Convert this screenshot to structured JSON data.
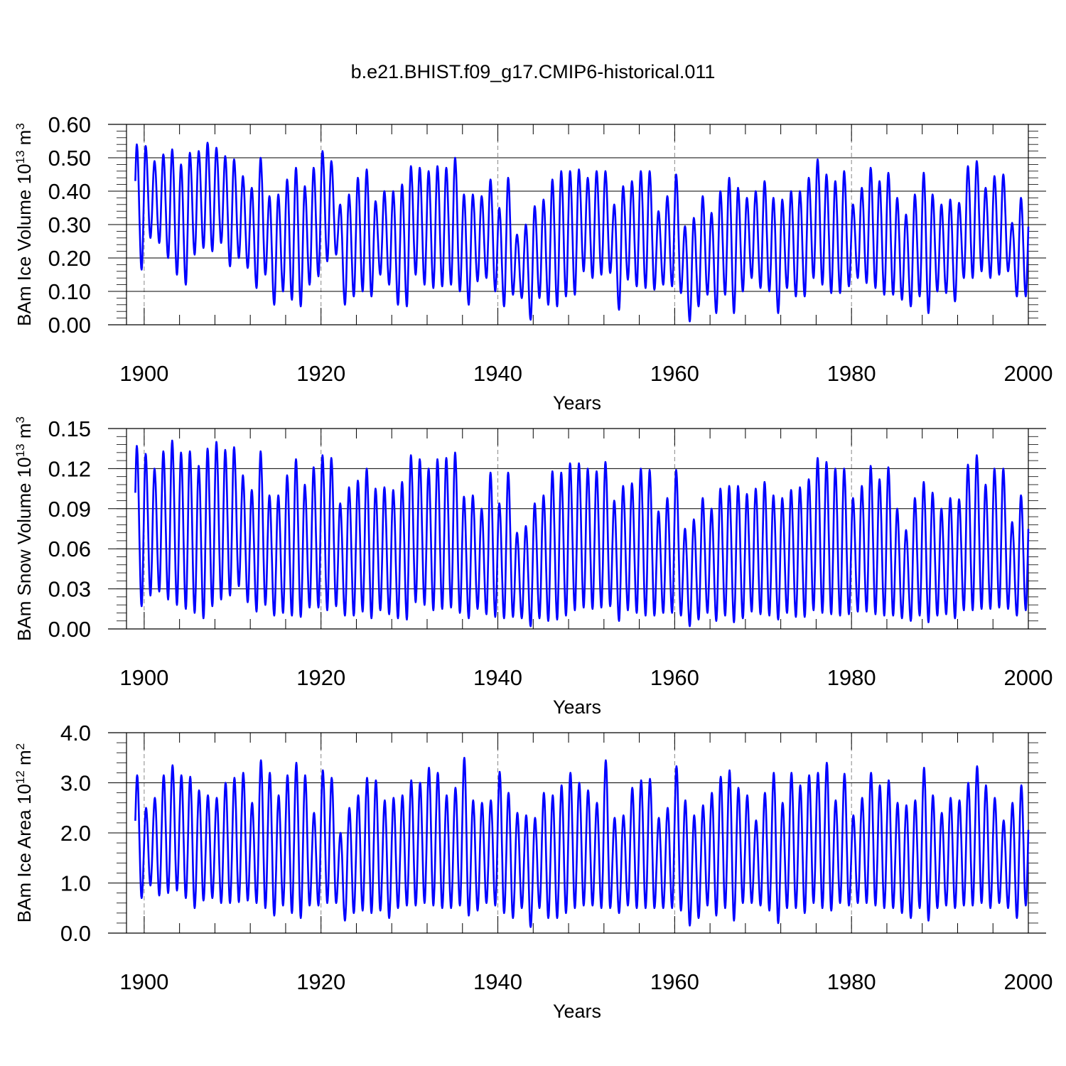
{
  "title": "b.e21.BHIST.f09_g17.CMIP6-historical.011",
  "colors": {
    "series": "#0000ff",
    "axes": "#000000",
    "refline": "#888888"
  },
  "chart_data": [
    {
      "type": "line",
      "ylabel": {
        "base": "BAm Ice Volume 10",
        "sup1": "13",
        "unit": " m",
        "sup2": "3"
      },
      "xlabel": "Years",
      "xlim": [
        1898,
        2000
      ],
      "ylim": [
        0.0,
        0.6
      ],
      "xticks": [
        "1900",
        "1920",
        "1940",
        "1960",
        "1980",
        "2000"
      ],
      "yticks": [
        "0.00",
        "0.10",
        "0.20",
        "0.30",
        "0.40",
        "0.50",
        "0.60"
      ],
      "grid": "dashed vertical lines at 1900, 1920, 1940, 1960, 1980",
      "seasonal_cycle": {
        "peak_month": 2,
        "trough_month": 8.5
      },
      "series": [
        {
          "frequency": "monthly (annual maxima and minima listed)",
          "x": [
            1899,
            1900,
            1901,
            1902,
            1903,
            1904,
            1905,
            1906,
            1907,
            1908,
            1909,
            1910,
            1911,
            1912,
            1913,
            1914,
            1915,
            1916,
            1917,
            1918,
            1919,
            1920,
            1921,
            1922,
            1923,
            1924,
            1925,
            1926,
            1927,
            1928,
            1929,
            1930,
            1931,
            1932,
            1933,
            1934,
            1935,
            1936,
            1937,
            1938,
            1939,
            1940,
            1941,
            1942,
            1943,
            1944,
            1945,
            1946,
            1947,
            1948,
            1949,
            1950,
            1951,
            1952,
            1953,
            1954,
            1955,
            1956,
            1957,
            1958,
            1959,
            1960,
            1961,
            1962,
            1963,
            1964,
            1965,
            1966,
            1967,
            1968,
            1969,
            1970,
            1971,
            1972,
            1973,
            1974,
            1975,
            1976,
            1977,
            1978,
            1979,
            1980,
            1981,
            1982,
            1983,
            1984,
            1985,
            1986,
            1987,
            1988,
            1989,
            1990,
            1991,
            1992,
            1993,
            1994,
            1995,
            1996,
            1997,
            1998,
            1999
          ],
          "annual_max": [
            0.54,
            0.535,
            0.49,
            0.51,
            0.525,
            0.48,
            0.515,
            0.52,
            0.545,
            0.53,
            0.505,
            0.495,
            0.445,
            0.41,
            0.5,
            0.385,
            0.39,
            0.435,
            0.47,
            0.415,
            0.47,
            0.52,
            0.49,
            0.36,
            0.39,
            0.44,
            0.465,
            0.37,
            0.4,
            0.4,
            0.42,
            0.475,
            0.47,
            0.46,
            0.475,
            0.47,
            0.5,
            0.39,
            0.39,
            0.385,
            0.435,
            0.35,
            0.44,
            0.27,
            0.3,
            0.355,
            0.375,
            0.435,
            0.46,
            0.46,
            0.465,
            0.44,
            0.46,
            0.46,
            0.36,
            0.415,
            0.43,
            0.46,
            0.46,
            0.34,
            0.385,
            0.45,
            0.295,
            0.32,
            0.385,
            0.335,
            0.4,
            0.44,
            0.41,
            0.38,
            0.4,
            0.43,
            0.38,
            0.375,
            0.4,
            0.4,
            0.44,
            0.495,
            0.45,
            0.43,
            0.46,
            0.36,
            0.41,
            0.47,
            0.43,
            0.455,
            0.38,
            0.33,
            0.39,
            0.455,
            0.39,
            0.36,
            0.375,
            0.365,
            0.475,
            0.49,
            0.41,
            0.445,
            0.45,
            0.305,
            0.38
          ],
          "annual_min": [
            0.165,
            0.26,
            0.245,
            0.2,
            0.15,
            0.12,
            0.21,
            0.23,
            0.22,
            0.245,
            0.175,
            0.2,
            0.17,
            0.11,
            0.15,
            0.06,
            0.1,
            0.075,
            0.055,
            0.12,
            0.145,
            0.19,
            0.21,
            0.06,
            0.085,
            0.1,
            0.085,
            0.15,
            0.12,
            0.06,
            0.055,
            0.15,
            0.12,
            0.11,
            0.115,
            0.12,
            0.1,
            0.06,
            0.13,
            0.14,
            0.1,
            0.055,
            0.09,
            0.08,
            0.015,
            0.08,
            0.06,
            0.055,
            0.085,
            0.09,
            0.16,
            0.14,
            0.15,
            0.155,
            0.045,
            0.135,
            0.115,
            0.11,
            0.105,
            0.12,
            0.115,
            0.095,
            0.01,
            0.055,
            0.09,
            0.035,
            0.09,
            0.035,
            0.1,
            0.14,
            0.11,
            0.1,
            0.035,
            0.11,
            0.085,
            0.085,
            0.14,
            0.12,
            0.095,
            0.095,
            0.115,
            0.14,
            0.125,
            0.11,
            0.09,
            0.09,
            0.075,
            0.055,
            0.085,
            0.035,
            0.1,
            0.095,
            0.07,
            0.14,
            0.14,
            0.16,
            0.14,
            0.15,
            0.16,
            0.085,
            0.085
          ]
        }
      ]
    },
    {
      "type": "line",
      "ylabel": {
        "base": "BAm Snow Volume 10",
        "sup1": "13",
        "unit": " m",
        "sup2": "3"
      },
      "xlabel": "Years",
      "xlim": [
        1898,
        2000
      ],
      "ylim": [
        0.0,
        0.15
      ],
      "xticks": [
        "1900",
        "1920",
        "1940",
        "1960",
        "1980",
        "2000"
      ],
      "yticks": [
        "0.00",
        "0.03",
        "0.06",
        "0.09",
        "0.12",
        "0.15"
      ],
      "grid": "dashed vertical lines at 1900, 1920, 1940, 1960, 1980",
      "seasonal_cycle": {
        "peak_month": 2,
        "trough_month": 8.5
      },
      "series": [
        {
          "frequency": "monthly (annual maxima and minima listed)",
          "x": [
            1899,
            1900,
            1901,
            1902,
            1903,
            1904,
            1905,
            1906,
            1907,
            1908,
            1909,
            1910,
            1911,
            1912,
            1913,
            1914,
            1915,
            1916,
            1917,
            1918,
            1919,
            1920,
            1921,
            1922,
            1923,
            1924,
            1925,
            1926,
            1927,
            1928,
            1929,
            1930,
            1931,
            1932,
            1933,
            1934,
            1935,
            1936,
            1937,
            1938,
            1939,
            1940,
            1941,
            1942,
            1943,
            1944,
            1945,
            1946,
            1947,
            1948,
            1949,
            1950,
            1951,
            1952,
            1953,
            1954,
            1955,
            1956,
            1957,
            1958,
            1959,
            1960,
            1961,
            1962,
            1963,
            1964,
            1965,
            1966,
            1967,
            1968,
            1969,
            1970,
            1971,
            1972,
            1973,
            1974,
            1975,
            1976,
            1977,
            1978,
            1979,
            1980,
            1981,
            1982,
            1983,
            1984,
            1985,
            1986,
            1987,
            1988,
            1989,
            1990,
            1991,
            1992,
            1993,
            1994,
            1995,
            1996,
            1997,
            1998,
            1999
          ],
          "annual_max": [
            0.137,
            0.131,
            0.12,
            0.133,
            0.141,
            0.132,
            0.133,
            0.122,
            0.135,
            0.14,
            0.134,
            0.136,
            0.115,
            0.104,
            0.133,
            0.1,
            0.1,
            0.115,
            0.127,
            0.108,
            0.121,
            0.13,
            0.128,
            0.094,
            0.106,
            0.111,
            0.12,
            0.105,
            0.106,
            0.104,
            0.11,
            0.13,
            0.127,
            0.12,
            0.127,
            0.128,
            0.132,
            0.099,
            0.1,
            0.09,
            0.117,
            0.094,
            0.117,
            0.072,
            0.077,
            0.094,
            0.1,
            0.118,
            0.117,
            0.124,
            0.124,
            0.12,
            0.118,
            0.125,
            0.096,
            0.107,
            0.109,
            0.12,
            0.119,
            0.088,
            0.098,
            0.119,
            0.075,
            0.082,
            0.098,
            0.09,
            0.105,
            0.107,
            0.107,
            0.101,
            0.105,
            0.11,
            0.1,
            0.098,
            0.104,
            0.106,
            0.112,
            0.128,
            0.125,
            0.12,
            0.12,
            0.098,
            0.107,
            0.122,
            0.112,
            0.121,
            0.09,
            0.074,
            0.098,
            0.11,
            0.102,
            0.09,
            0.098,
            0.097,
            0.123,
            0.13,
            0.108,
            0.12,
            0.12,
            0.08,
            0.1
          ],
          "annual_min": [
            0.017,
            0.025,
            0.028,
            0.022,
            0.018,
            0.015,
            0.012,
            0.008,
            0.017,
            0.022,
            0.025,
            0.032,
            0.02,
            0.013,
            0.018,
            0.01,
            0.012,
            0.01,
            0.009,
            0.016,
            0.016,
            0.014,
            0.017,
            0.01,
            0.01,
            0.013,
            0.008,
            0.014,
            0.011,
            0.008,
            0.007,
            0.02,
            0.018,
            0.014,
            0.015,
            0.016,
            0.012,
            0.008,
            0.015,
            0.011,
            0.009,
            0.008,
            0.009,
            0.008,
            0.002,
            0.008,
            0.006,
            0.007,
            0.01,
            0.014,
            0.016,
            0.015,
            0.016,
            0.017,
            0.006,
            0.014,
            0.012,
            0.01,
            0.01,
            0.012,
            0.012,
            0.01,
            0.002,
            0.007,
            0.012,
            0.006,
            0.01,
            0.005,
            0.008,
            0.013,
            0.011,
            0.01,
            0.007,
            0.012,
            0.009,
            0.009,
            0.014,
            0.012,
            0.011,
            0.01,
            0.011,
            0.013,
            0.013,
            0.011,
            0.01,
            0.01,
            0.008,
            0.006,
            0.01,
            0.005,
            0.01,
            0.011,
            0.008,
            0.014,
            0.014,
            0.015,
            0.015,
            0.016,
            0.015,
            0.01,
            0.014
          ]
        }
      ]
    },
    {
      "type": "line",
      "ylabel": {
        "base": "BAm Ice Area 10",
        "sup1": "12",
        "unit": " m",
        "sup2": "2"
      },
      "xlabel": "Years",
      "xlim": [
        1898,
        2000
      ],
      "ylim": [
        0.0,
        4.0
      ],
      "xticks": [
        "1900",
        "1920",
        "1940",
        "1960",
        "1980",
        "2000"
      ],
      "yticks": [
        "0.0",
        "1.0",
        "2.0",
        "3.0",
        "4.0"
      ],
      "grid": "dashed vertical lines at 1900, 1920, 1940, 1960, 1980",
      "seasonal_cycle": {
        "peak_month": 2.5,
        "trough_month": 8.5
      },
      "series": [
        {
          "frequency": "monthly (annual maxima and minima listed)",
          "x": [
            1899,
            1900,
            1901,
            1902,
            1903,
            1904,
            1905,
            1906,
            1907,
            1908,
            1909,
            1910,
            1911,
            1912,
            1913,
            1914,
            1915,
            1916,
            1917,
            1918,
            1919,
            1920,
            1921,
            1922,
            1923,
            1924,
            1925,
            1926,
            1927,
            1928,
            1929,
            1930,
            1931,
            1932,
            1933,
            1934,
            1935,
            1936,
            1937,
            1938,
            1939,
            1940,
            1941,
            1942,
            1943,
            1944,
            1945,
            1946,
            1947,
            1948,
            1949,
            1950,
            1951,
            1952,
            1953,
            1954,
            1955,
            1956,
            1957,
            1958,
            1959,
            1960,
            1961,
            1962,
            1963,
            1964,
            1965,
            1966,
            1967,
            1968,
            1969,
            1970,
            1971,
            1972,
            1973,
            1974,
            1975,
            1976,
            1977,
            1978,
            1979,
            1980,
            1981,
            1982,
            1983,
            1984,
            1985,
            1986,
            1987,
            1988,
            1989,
            1990,
            1991,
            1992,
            1993,
            1994,
            1995,
            1996,
            1997,
            1998,
            1999
          ],
          "annual_max": [
            3.15,
            2.5,
            2.7,
            3.15,
            3.35,
            3.15,
            3.12,
            2.85,
            2.75,
            2.7,
            3.0,
            3.1,
            3.2,
            2.6,
            3.45,
            3.2,
            2.75,
            3.15,
            3.4,
            3.15,
            2.4,
            3.25,
            3.1,
            2.0,
            2.5,
            2.75,
            3.1,
            3.05,
            2.65,
            2.7,
            2.75,
            3.05,
            3.0,
            3.3,
            3.2,
            2.75,
            2.9,
            3.5,
            2.65,
            2.6,
            2.65,
            3.22,
            2.8,
            2.4,
            2.35,
            2.3,
            2.8,
            2.75,
            2.95,
            3.2,
            3.0,
            2.85,
            2.6,
            3.45,
            2.3,
            2.35,
            2.9,
            3.05,
            3.08,
            2.3,
            2.5,
            3.33,
            2.65,
            2.35,
            2.55,
            2.8,
            3.12,
            3.25,
            2.9,
            2.75,
            2.25,
            2.8,
            3.2,
            2.6,
            3.2,
            2.95,
            3.15,
            3.2,
            3.4,
            2.65,
            3.18,
            2.35,
            2.7,
            3.2,
            2.95,
            3.05,
            2.6,
            2.55,
            2.65,
            3.3,
            2.75,
            2.4,
            2.7,
            2.65,
            3.0,
            3.33,
            2.95,
            2.7,
            2.25,
            2.6,
            2.95
          ],
          "annual_min": [
            0.7,
            0.95,
            0.75,
            0.8,
            0.85,
            0.7,
            0.5,
            0.65,
            0.7,
            0.6,
            0.6,
            0.62,
            0.65,
            0.6,
            0.5,
            0.35,
            0.55,
            0.4,
            0.3,
            0.55,
            0.55,
            0.6,
            0.6,
            0.25,
            0.4,
            0.45,
            0.4,
            0.45,
            0.3,
            0.5,
            0.55,
            0.55,
            0.6,
            0.55,
            0.5,
            0.5,
            0.55,
            0.35,
            0.45,
            0.6,
            0.55,
            0.4,
            0.3,
            0.5,
            0.12,
            0.5,
            0.3,
            0.3,
            0.4,
            0.5,
            0.55,
            0.55,
            0.5,
            0.5,
            0.4,
            0.55,
            0.5,
            0.5,
            0.5,
            0.5,
            0.5,
            0.45,
            0.15,
            0.3,
            0.55,
            0.35,
            0.5,
            0.25,
            0.6,
            0.6,
            0.55,
            0.45,
            0.2,
            0.5,
            0.5,
            0.4,
            0.6,
            0.5,
            0.45,
            0.6,
            0.55,
            0.6,
            0.6,
            0.55,
            0.5,
            0.5,
            0.4,
            0.3,
            0.5,
            0.25,
            0.5,
            0.55,
            0.5,
            0.55,
            0.55,
            0.6,
            0.5,
            0.6,
            0.5,
            0.3,
            0.55
          ]
        }
      ]
    }
  ]
}
